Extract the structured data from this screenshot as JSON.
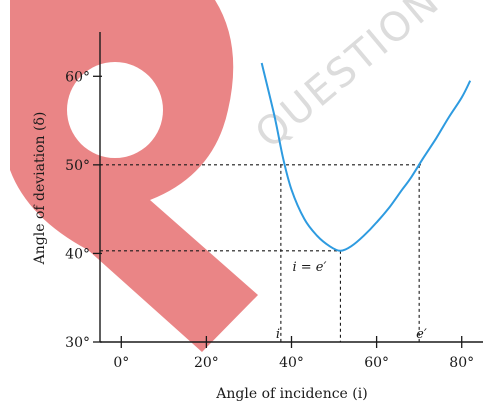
{
  "watermark": {
    "text": "QUESTION",
    "colors": {
      "shape": "#e97e80",
      "text": "#dcdcdc"
    }
  },
  "chart_data": {
    "type": "line",
    "xlabel": "Angle of incidence   (i)",
    "ylabel": "Angle of deviation  (δ)",
    "xlim": [
      -5,
      85
    ],
    "ylim": [
      30,
      65
    ],
    "x_ticks": [
      {
        "value": 0,
        "label": "0°"
      },
      {
        "value": 20,
        "label": "20°"
      },
      {
        "value": 40,
        "label": "40°"
      },
      {
        "value": 60,
        "label": "60°"
      },
      {
        "value": 80,
        "label": "80°"
      }
    ],
    "y_ticks": [
      {
        "value": 30,
        "label": "30°"
      },
      {
        "value": 40,
        "label": "40°"
      },
      {
        "value": 50,
        "label": "50°"
      },
      {
        "value": 60,
        "label": "60°"
      }
    ],
    "grid": false,
    "legend": "none",
    "line_color": "#2e9be0",
    "series": [
      {
        "x": [
          33,
          36,
          38,
          40,
          43,
          46,
          49,
          51.5,
          54,
          57,
          60,
          63,
          66,
          68,
          71,
          74,
          77,
          80,
          82
        ],
        "y": [
          61.5,
          55.5,
          50.8,
          47.2,
          43.9,
          42.0,
          40.8,
          40.3,
          40.8,
          42.0,
          43.5,
          45.2,
          47.2,
          48.5,
          50.8,
          53.0,
          55.4,
          57.6,
          59.5
        ]
      }
    ],
    "reference_lines": {
      "i": 37.5,
      "minimum_i": 51.5,
      "e_prime": 70,
      "delta_50": 50,
      "delta_min": 40.3
    },
    "annotations": {
      "i_label": "i",
      "e_label": "e′",
      "min_label": "i = e′"
    }
  }
}
